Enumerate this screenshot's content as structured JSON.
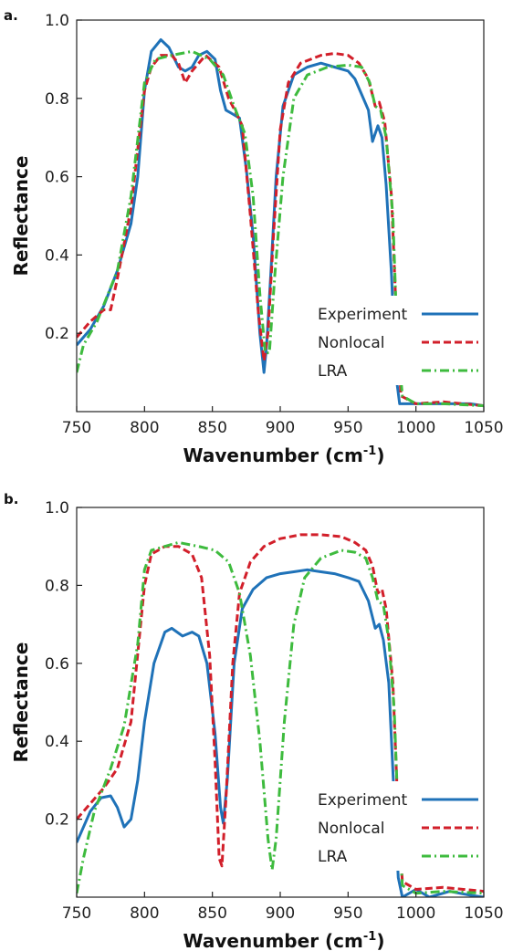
{
  "chart_data": [
    {
      "panel": "a.",
      "type": "line",
      "xlabel": "Wavenumber (cm",
      "xlabel_sup": "-1",
      "xlabel_end": ")",
      "ylabel": "Reflectance",
      "xlim": [
        750,
        1050
      ],
      "ylim": [
        0,
        1.0
      ],
      "xticks": [
        "750",
        "800",
        "850",
        "900",
        "950",
        "1000",
        "1050"
      ],
      "yticks": [
        "0.2",
        "0.4",
        "0.6",
        "0.8",
        "1.0"
      ],
      "legend_position": "bottom-right",
      "series": [
        {
          "name": "Experiment",
          "color": "#1f72b8",
          "dash": "solid",
          "points": [
            [
              750,
              0.17
            ],
            [
              760,
              0.21
            ],
            [
              770,
              0.27
            ],
            [
              780,
              0.36
            ],
            [
              790,
              0.48
            ],
            [
              795,
              0.6
            ],
            [
              800,
              0.82
            ],
            [
              805,
              0.92
            ],
            [
              812,
              0.95
            ],
            [
              818,
              0.93
            ],
            [
              825,
              0.88
            ],
            [
              830,
              0.87
            ],
            [
              835,
              0.88
            ],
            [
              840,
              0.91
            ],
            [
              846,
              0.92
            ],
            [
              852,
              0.9
            ],
            [
              856,
              0.82
            ],
            [
              860,
              0.77
            ],
            [
              865,
              0.76
            ],
            [
              870,
              0.75
            ],
            [
              875,
              0.62
            ],
            [
              880,
              0.45
            ],
            [
              885,
              0.2
            ],
            [
              888,
              0.1
            ],
            [
              890,
              0.17
            ],
            [
              893,
              0.35
            ],
            [
              897,
              0.6
            ],
            [
              902,
              0.78
            ],
            [
              910,
              0.86
            ],
            [
              920,
              0.88
            ],
            [
              930,
              0.89
            ],
            [
              940,
              0.88
            ],
            [
              950,
              0.87
            ],
            [
              955,
              0.85
            ],
            [
              960,
              0.81
            ],
            [
              965,
              0.77
            ],
            [
              968,
              0.69
            ],
            [
              972,
              0.73
            ],
            [
              975,
              0.7
            ],
            [
              978,
              0.58
            ],
            [
              982,
              0.35
            ],
            [
              985,
              0.1
            ],
            [
              988,
              0.02
            ],
            [
              1000,
              0.02
            ],
            [
              1020,
              0.02
            ],
            [
              1040,
              0.02
            ],
            [
              1050,
              0.015
            ]
          ]
        },
        {
          "name": "Nonlocal",
          "color": "#d21f2a",
          "dash": "dashed",
          "points": [
            [
              750,
              0.19
            ],
            [
              760,
              0.23
            ],
            [
              770,
              0.26
            ],
            [
              775,
              0.26
            ],
            [
              780,
              0.34
            ],
            [
              790,
              0.52
            ],
            [
              800,
              0.82
            ],
            [
              805,
              0.88
            ],
            [
              812,
              0.91
            ],
            [
              820,
              0.91
            ],
            [
              825,
              0.89
            ],
            [
              830,
              0.84
            ],
            [
              835,
              0.87
            ],
            [
              845,
              0.91
            ],
            [
              855,
              0.88
            ],
            [
              862,
              0.8
            ],
            [
              868,
              0.76
            ],
            [
              872,
              0.73
            ],
            [
              878,
              0.5
            ],
            [
              884,
              0.25
            ],
            [
              888,
              0.13
            ],
            [
              891,
              0.2
            ],
            [
              895,
              0.45
            ],
            [
              900,
              0.72
            ],
            [
              906,
              0.84
            ],
            [
              915,
              0.89
            ],
            [
              930,
              0.91
            ],
            [
              940,
              0.915
            ],
            [
              950,
              0.91
            ],
            [
              958,
              0.89
            ],
            [
              965,
              0.85
            ],
            [
              970,
              0.78
            ],
            [
              973,
              0.79
            ],
            [
              977,
              0.74
            ],
            [
              982,
              0.55
            ],
            [
              986,
              0.2
            ],
            [
              989,
              0.04
            ],
            [
              1000,
              0.02
            ],
            [
              1020,
              0.025
            ],
            [
              1050,
              0.015
            ]
          ]
        },
        {
          "name": "LRA",
          "color": "#3ebb3e",
          "dash": "dashdot",
          "points": [
            [
              750,
              0.1
            ],
            [
              755,
              0.17
            ],
            [
              765,
              0.23
            ],
            [
              780,
              0.36
            ],
            [
              790,
              0.55
            ],
            [
              800,
              0.84
            ],
            [
              808,
              0.9
            ],
            [
              820,
              0.91
            ],
            [
              835,
              0.92
            ],
            [
              848,
              0.9
            ],
            [
              858,
              0.86
            ],
            [
              866,
              0.78
            ],
            [
              874,
              0.71
            ],
            [
              880,
              0.55
            ],
            [
              885,
              0.3
            ],
            [
              889,
              0.15
            ],
            [
              892,
              0.15
            ],
            [
              896,
              0.35
            ],
            [
              902,
              0.6
            ],
            [
              910,
              0.8
            ],
            [
              920,
              0.86
            ],
            [
              935,
              0.88
            ],
            [
              950,
              0.885
            ],
            [
              960,
              0.88
            ],
            [
              966,
              0.84
            ],
            [
              970,
              0.78
            ],
            [
              974,
              0.77
            ],
            [
              978,
              0.7
            ],
            [
              983,
              0.5
            ],
            [
              986,
              0.2
            ],
            [
              990,
              0.04
            ],
            [
              1000,
              0.02
            ],
            [
              1020,
              0.02
            ],
            [
              1050,
              0.015
            ]
          ]
        }
      ]
    },
    {
      "panel": "b.",
      "type": "line",
      "xlabel": "Wavenumber (cm",
      "xlabel_sup": "-1",
      "xlabel_end": ")",
      "ylabel": "Reflectance",
      "xlim": [
        750,
        1050
      ],
      "ylim": [
        0,
        1.0
      ],
      "xticks": [
        "750",
        "800",
        "850",
        "900",
        "950",
        "1000",
        "1050"
      ],
      "yticks": [
        "0.2",
        "0.4",
        "0.6",
        "0.8",
        "1.0"
      ],
      "legend_position": "bottom-right",
      "series": [
        {
          "name": "Experiment",
          "color": "#1f72b8",
          "dash": "solid",
          "points": [
            [
              750,
              0.14
            ],
            [
              760,
              0.22
            ],
            [
              768,
              0.255
            ],
            [
              775,
              0.26
            ],
            [
              780,
              0.23
            ],
            [
              785,
              0.18
            ],
            [
              790,
              0.2
            ],
            [
              795,
              0.3
            ],
            [
              800,
              0.45
            ],
            [
              807,
              0.6
            ],
            [
              815,
              0.68
            ],
            [
              820,
              0.69
            ],
            [
              828,
              0.67
            ],
            [
              835,
              0.68
            ],
            [
              840,
              0.67
            ],
            [
              846,
              0.6
            ],
            [
              852,
              0.42
            ],
            [
              856,
              0.23
            ],
            [
              858,
              0.19
            ],
            [
              861,
              0.3
            ],
            [
              866,
              0.6
            ],
            [
              872,
              0.74
            ],
            [
              880,
              0.79
            ],
            [
              890,
              0.82
            ],
            [
              900,
              0.83
            ],
            [
              910,
              0.835
            ],
            [
              920,
              0.84
            ],
            [
              930,
              0.835
            ],
            [
              940,
              0.83
            ],
            [
              950,
              0.82
            ],
            [
              958,
              0.81
            ],
            [
              965,
              0.76
            ],
            [
              970,
              0.69
            ],
            [
              973,
              0.7
            ],
            [
              976,
              0.66
            ],
            [
              980,
              0.55
            ],
            [
              984,
              0.25
            ],
            [
              987,
              0.05
            ],
            [
              990,
              0.0
            ],
            [
              1000,
              0.02
            ],
            [
              1010,
              0.0
            ],
            [
              1025,
              0.015
            ],
            [
              1040,
              0.005
            ],
            [
              1050,
              0.0
            ]
          ]
        },
        {
          "name": "Nonlocal",
          "color": "#d21f2a",
          "dash": "dashed",
          "points": [
            [
              750,
              0.2
            ],
            [
              760,
              0.24
            ],
            [
              770,
              0.28
            ],
            [
              780,
              0.33
            ],
            [
              790,
              0.45
            ],
            [
              800,
              0.8
            ],
            [
              805,
              0.88
            ],
            [
              815,
              0.9
            ],
            [
              825,
              0.9
            ],
            [
              835,
              0.88
            ],
            [
              842,
              0.82
            ],
            [
              848,
              0.62
            ],
            [
              852,
              0.35
            ],
            [
              855,
              0.1
            ],
            [
              857,
              0.08
            ],
            [
              860,
              0.25
            ],
            [
              865,
              0.6
            ],
            [
              870,
              0.78
            ],
            [
              878,
              0.86
            ],
            [
              888,
              0.9
            ],
            [
              900,
              0.92
            ],
            [
              915,
              0.93
            ],
            [
              930,
              0.93
            ],
            [
              945,
              0.925
            ],
            [
              955,
              0.91
            ],
            [
              963,
              0.89
            ],
            [
              968,
              0.85
            ],
            [
              972,
              0.78
            ],
            [
              975,
              0.79
            ],
            [
              978,
              0.74
            ],
            [
              983,
              0.55
            ],
            [
              987,
              0.2
            ],
            [
              990,
              0.04
            ],
            [
              1000,
              0.02
            ],
            [
              1020,
              0.025
            ],
            [
              1050,
              0.015
            ]
          ]
        },
        {
          "name": "LRA",
          "color": "#3ebb3e",
          "dash": "dashdot",
          "points": [
            [
              750,
              0.01
            ],
            [
              755,
              0.1
            ],
            [
              763,
              0.22
            ],
            [
              775,
              0.33
            ],
            [
              785,
              0.44
            ],
            [
              795,
              0.65
            ],
            [
              800,
              0.84
            ],
            [
              805,
              0.89
            ],
            [
              815,
              0.9
            ],
            [
              825,
              0.91
            ],
            [
              840,
              0.9
            ],
            [
              852,
              0.89
            ],
            [
              862,
              0.86
            ],
            [
              870,
              0.78
            ],
            [
              878,
              0.62
            ],
            [
              885,
              0.4
            ],
            [
              891,
              0.15
            ],
            [
              894,
              0.07
            ],
            [
              897,
              0.15
            ],
            [
              903,
              0.45
            ],
            [
              910,
              0.7
            ],
            [
              918,
              0.82
            ],
            [
              930,
              0.87
            ],
            [
              945,
              0.89
            ],
            [
              955,
              0.885
            ],
            [
              963,
              0.87
            ],
            [
              968,
              0.82
            ],
            [
              972,
              0.76
            ],
            [
              976,
              0.75
            ],
            [
              980,
              0.66
            ],
            [
              984,
              0.48
            ],
            [
              987,
              0.2
            ],
            [
              990,
              0.03
            ],
            [
              1000,
              0.01
            ],
            [
              1020,
              0.015
            ],
            [
              1050,
              0.01
            ]
          ]
        }
      ]
    }
  ]
}
